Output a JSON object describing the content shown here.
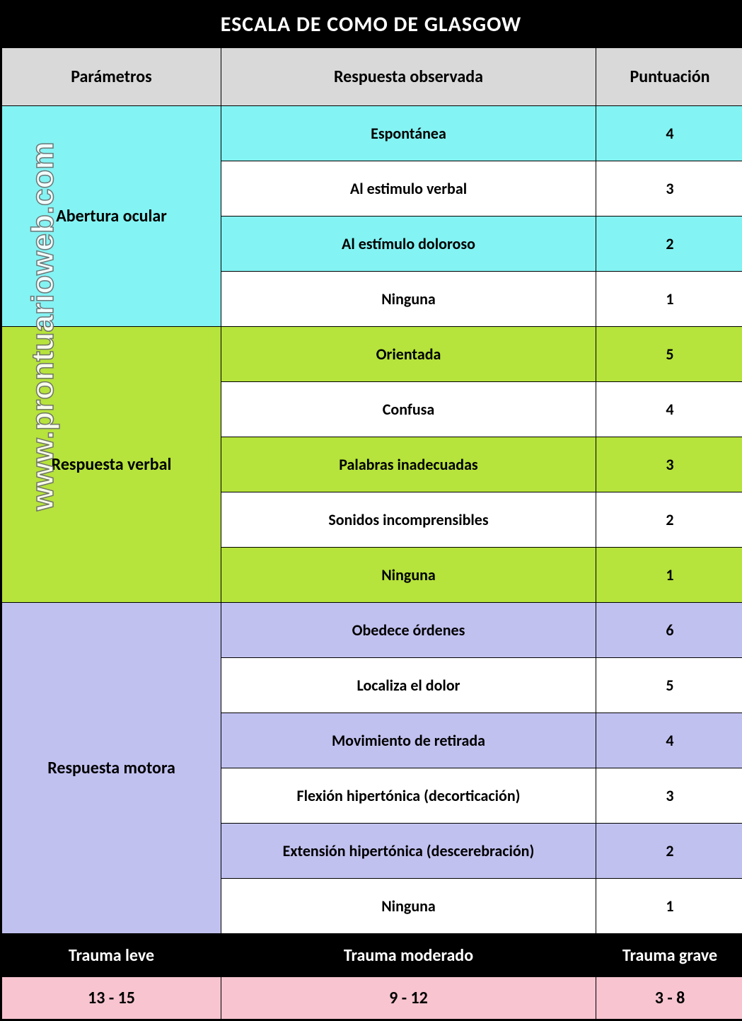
{
  "title": "ESCALA DE COMO DE GLASGOW",
  "watermark": "www.prontuarioweb.com",
  "headers": {
    "param": "Parámetros",
    "response": "Respuesta observada",
    "score": "Puntuación"
  },
  "colors": {
    "cyan": "#84f3f3",
    "lime": "#b6e33c",
    "lavender": "#c1c1f0",
    "pink": "#f7c4d0",
    "header_gray": "#d9d9d9",
    "black": "#000000",
    "white": "#ffffff"
  },
  "sections": [
    {
      "name": "Abertura ocular",
      "color_class": "cyan",
      "rows": [
        {
          "response": "Espontánea",
          "score": "4",
          "band": "cyan"
        },
        {
          "response": "Al estimulo verbal",
          "score": "3",
          "band": "white"
        },
        {
          "response": "Al estímulo doloroso",
          "score": "2",
          "band": "cyan"
        },
        {
          "response": "Ninguna",
          "score": "1",
          "band": "white"
        }
      ]
    },
    {
      "name": "Respuesta verbal",
      "color_class": "lime",
      "rows": [
        {
          "response": "Orientada",
          "score": "5",
          "band": "lime"
        },
        {
          "response": "Confusa",
          "score": "4",
          "band": "white"
        },
        {
          "response": "Palabras inadecuadas",
          "score": "3",
          "band": "lime"
        },
        {
          "response": "Sonidos incomprensibles",
          "score": "2",
          "band": "white"
        },
        {
          "response": "Ninguna",
          "score": "1",
          "band": "lime"
        }
      ]
    },
    {
      "name": "Respuesta motora",
      "color_class": "lav",
      "rows": [
        {
          "response": "Obedece órdenes",
          "score": "6",
          "band": "lav"
        },
        {
          "response": "Localiza el dolor",
          "score": "5",
          "band": "white"
        },
        {
          "response": "Movimiento de retirada",
          "score": "4",
          "band": "lav"
        },
        {
          "response": "Flexión hipertónica (decorticación)",
          "score": "3",
          "band": "white"
        },
        {
          "response": "Extensión hipertónica (descerebración)",
          "score": "2",
          "band": "lav"
        },
        {
          "response": "Ninguna",
          "score": "1",
          "band": "white"
        }
      ]
    }
  ],
  "footer": {
    "labels": [
      "Trauma leve",
      "Trauma moderado",
      "Trauma grave"
    ],
    "ranges": [
      "13 - 15",
      "9 - 12",
      "3 - 8"
    ]
  }
}
